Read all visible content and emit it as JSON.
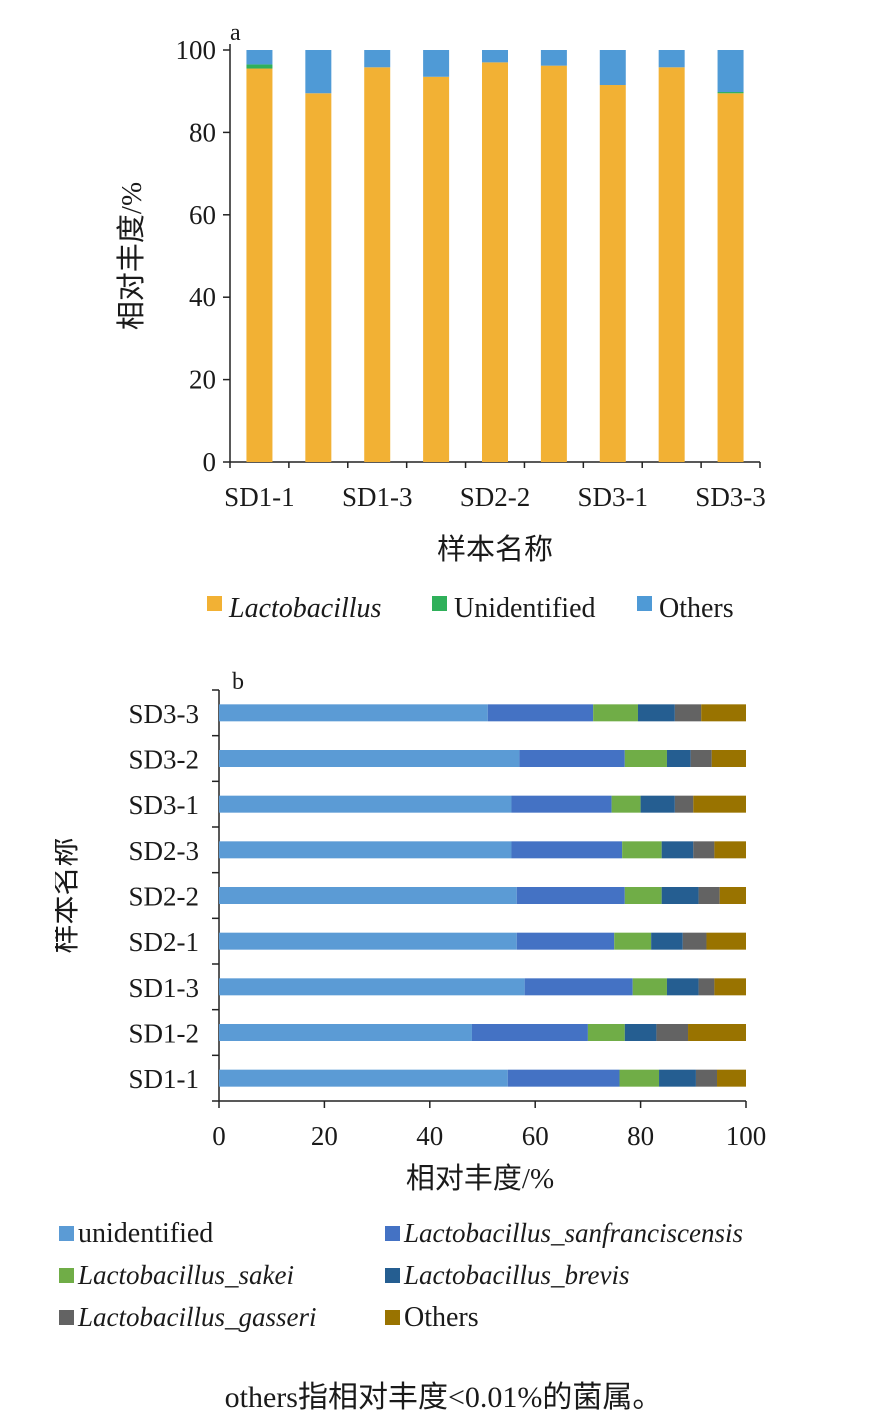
{
  "chart_data": [
    {
      "panel": "a",
      "type": "bar",
      "stacked": true,
      "orientation": "vertical",
      "categories": [
        "SD1-1",
        "SD1-2",
        "SD1-3",
        "SD2-1",
        "SD2-2",
        "SD2-3",
        "SD3-1",
        "SD3-2",
        "SD3-3"
      ],
      "tick_labels": [
        "SD1-1",
        "SD1-3",
        "SD2-2",
        "SD3-1",
        "SD3-3"
      ],
      "series": [
        {
          "name": "Lactobacillus",
          "italic": true,
          "color": "#f2b134",
          "values": [
            95.5,
            89.5,
            95.8,
            93.5,
            97.0,
            96.2,
            91.5,
            95.8,
            89.5
          ]
        },
        {
          "name": "Unidentified",
          "italic": false,
          "color": "#2fb05a",
          "values": [
            1.0,
            0.0,
            0.0,
            0.0,
            0.0,
            0.0,
            0.0,
            0.0,
            0.3
          ]
        },
        {
          "name": "Others",
          "italic": false,
          "color": "#4f9ad6",
          "values": [
            3.5,
            10.5,
            4.2,
            6.5,
            3.0,
            3.8,
            8.5,
            4.2,
            10.2
          ]
        }
      ],
      "ylim": [
        0,
        100
      ],
      "yticks": [
        0,
        20,
        40,
        60,
        80,
        100
      ],
      "ylabel": "相对丰度/%",
      "xlabel": "样本名称",
      "legend": "bottom"
    },
    {
      "panel": "b",
      "type": "bar",
      "stacked": true,
      "orientation": "horizontal",
      "categories": [
        "SD3-3",
        "SD3-2",
        "SD3-1",
        "SD2-3",
        "SD2-2",
        "SD2-1",
        "SD1-3",
        "SD1-2",
        "SD1-1"
      ],
      "series": [
        {
          "name": "unidentified",
          "italic": false,
          "color": "#5b9bd5",
          "values": [
            51,
            57,
            55.5,
            55.5,
            56.5,
            56.5,
            58,
            48,
            54.8
          ]
        },
        {
          "name": "Lactobacillus_sanfranciscensis",
          "italic": true,
          "color": "#4472c4",
          "values": [
            20,
            20,
            19,
            21,
            20.5,
            18.5,
            20.5,
            22,
            21.2
          ]
        },
        {
          "name": "Lactobacillus_sakei",
          "italic": true,
          "color": "#70ad47",
          "values": [
            8.5,
            8,
            5.5,
            7.5,
            7,
            7,
            6.5,
            7,
            7.5
          ]
        },
        {
          "name": "Lactobacillus_brevis",
          "italic": true,
          "color": "#255e91",
          "values": [
            7,
            4.5,
            6.5,
            6,
            7,
            6,
            6,
            6,
            7
          ]
        },
        {
          "name": "Lactobacillus_gasseri",
          "italic": true,
          "color": "#636363",
          "values": [
            5,
            4,
            3.5,
            4,
            4,
            4.5,
            3,
            6,
            4
          ]
        },
        {
          "name": "Others",
          "italic": false,
          "color": "#997300",
          "values": [
            8.5,
            6.5,
            10,
            6,
            5,
            7.5,
            6,
            11,
            5.5
          ]
        }
      ],
      "xlim": [
        0,
        100
      ],
      "xticks": [
        0,
        20,
        40,
        60,
        80,
        100
      ],
      "xlabel": "相对丰度/%",
      "ylabel": "样本名称",
      "legend": "bottom"
    }
  ],
  "caption": "others指相对丰度<0.01%的菌属。"
}
